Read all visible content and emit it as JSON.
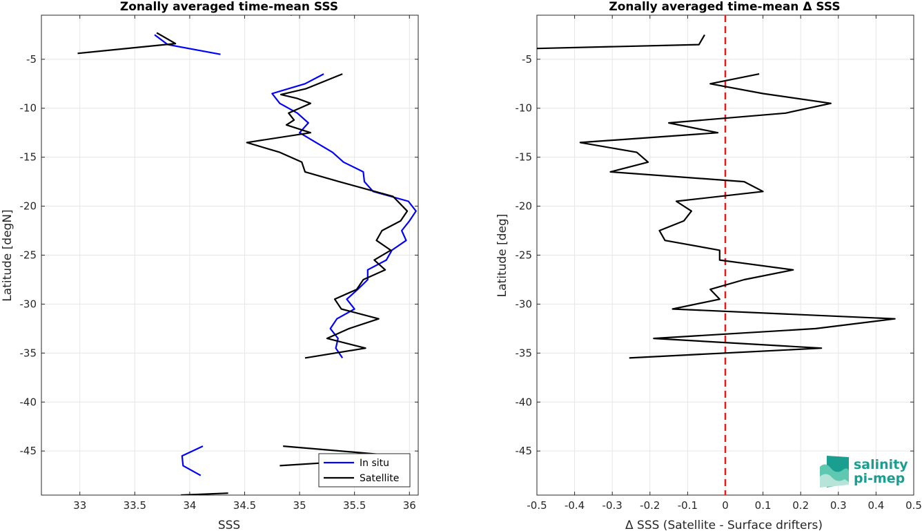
{
  "chart_data": [
    {
      "type": "line",
      "title": "Zonally averaged time-mean SSS",
      "xlabel": "SSS",
      "ylabel": "Latitude [degN]",
      "xlim": [
        32.65,
        36.08
      ],
      "ylim": [
        -49.5,
        -0.5
      ],
      "xticks": [
        33,
        33.5,
        34,
        34.5,
        35,
        35.5,
        36
      ],
      "xtick_labels": [
        "33",
        "33.5",
        "34",
        "34.5",
        "35",
        "35.5",
        "36"
      ],
      "yticks": [
        -5,
        -10,
        -15,
        -20,
        -25,
        -30,
        -35,
        -40,
        -45
      ],
      "ytick_labels": [
        "-5",
        "-10",
        "-15",
        "-20",
        "-25",
        "-30",
        "-35",
        "-40",
        "-45"
      ],
      "grid": true,
      "legend_position": "bottom-right",
      "series": [
        {
          "name": "In situ",
          "color": "#0000ff",
          "segments": [
            [
              [
                33.68,
                -2.5
              ],
              [
                33.8,
                -3.5
              ],
              [
                34.28,
                -4.5
              ]
            ],
            [
              [
                35.22,
                -6.5
              ],
              [
                35.05,
                -7.5
              ],
              [
                34.75,
                -8.5
              ],
              [
                34.82,
                -9.5
              ],
              [
                34.98,
                -10.5
              ],
              [
                35.08,
                -11.5
              ],
              [
                35.0,
                -12.5
              ],
              [
                35.15,
                -13.5
              ],
              [
                35.3,
                -14.5
              ],
              [
                35.4,
                -15.5
              ],
              [
                35.58,
                -16.5
              ],
              [
                35.59,
                -17.5
              ],
              [
                35.67,
                -18.5
              ],
              [
                35.99,
                -19.5
              ],
              [
                36.06,
                -20.5
              ],
              [
                36.0,
                -21.5
              ],
              [
                35.93,
                -22.5
              ],
              [
                35.97,
                -23.5
              ],
              [
                35.84,
                -24.5
              ],
              [
                35.79,
                -25.5
              ],
              [
                35.62,
                -26.5
              ],
              [
                35.62,
                -27.5
              ],
              [
                35.53,
                -28.5
              ],
              [
                35.43,
                -29.5
              ],
              [
                35.5,
                -30.5
              ],
              [
                35.34,
                -31.5
              ],
              [
                35.28,
                -32.5
              ],
              [
                35.35,
                -33.5
              ],
              [
                35.33,
                -34.5
              ],
              [
                35.39,
                -35.5
              ]
            ],
            [
              [
                34.12,
                -44.5
              ],
              [
                33.93,
                -45.5
              ],
              [
                33.94,
                -46.5
              ],
              [
                34.1,
                -47.5
              ]
            ]
          ]
        },
        {
          "name": "Satellite",
          "color": "#000000",
          "segments": [
            [
              [
                34.92,
                -0.5
              ],
              [
                34.98,
                -0.2
              ]
            ],
            [
              [
                33.7,
                -2.3
              ],
              [
                33.87,
                -3.4
              ],
              [
                32.98,
                -4.4
              ]
            ],
            [
              [
                35.39,
                -6.5
              ],
              [
                35.06,
                -8.0
              ],
              [
                34.83,
                -8.6
              ],
              [
                34.98,
                -9.0
              ],
              [
                35.1,
                -9.5
              ],
              [
                34.9,
                -10.5
              ],
              [
                34.95,
                -11.2
              ],
              [
                34.88,
                -11.7
              ],
              [
                35.1,
                -12.5
              ],
              [
                34.52,
                -13.5
              ],
              [
                34.82,
                -14.5
              ],
              [
                35.02,
                -15.5
              ],
              [
                35.05,
                -16.5
              ],
              [
                35.36,
                -17.5
              ],
              [
                35.85,
                -19.0
              ],
              [
                35.98,
                -20.5
              ],
              [
                35.92,
                -21.5
              ],
              [
                35.75,
                -22.5
              ],
              [
                35.7,
                -23.5
              ],
              [
                35.83,
                -24.5
              ],
              [
                35.68,
                -25.5
              ],
              [
                35.78,
                -26.5
              ],
              [
                35.58,
                -27.5
              ],
              [
                35.52,
                -28.5
              ],
              [
                35.32,
                -29.5
              ],
              [
                35.38,
                -30.5
              ],
              [
                35.72,
                -31.5
              ],
              [
                35.45,
                -32.5
              ],
              [
                35.25,
                -33.5
              ],
              [
                35.6,
                -34.5
              ],
              [
                35.05,
                -35.5
              ]
            ]
          ],
          "lower_segments": [
            [
              [
                34.85,
                -44.5
              ],
              [
                35.9,
                -45.5
              ]
            ],
            [
              [
                34.82,
                -46.5
              ],
              [
                35.8,
                -45.8
              ],
              [
                35.6,
                -47.0
              ]
            ],
            [
              [
                33.92,
                -49.5
              ],
              [
                34.35,
                -49.3
              ]
            ]
          ]
        }
      ]
    },
    {
      "type": "line",
      "title": "Zonally averaged time-mean Δ SSS",
      "xlabel": "Δ SSS (Satellite - Surface drifters)",
      "ylabel": "Latitude [deg]",
      "xlim": [
        -0.5,
        0.5
      ],
      "ylim": [
        -49.5,
        -0.5
      ],
      "xticks": [
        -0.5,
        -0.4,
        -0.3,
        -0.2,
        -0.1,
        0,
        0.1,
        0.2,
        0.3,
        0.4,
        0.5
      ],
      "xtick_labels": [
        "-0.5",
        "-0.4",
        "-0.3",
        "-0.2",
        "-0.1",
        "0",
        "0.1",
        "0.2",
        "0.3",
        "0.4",
        "0.5"
      ],
      "yticks": [
        -5,
        -10,
        -15,
        -20,
        -25,
        -30,
        -35,
        -40,
        -45
      ],
      "ytick_labels": [
        "-5",
        "-10",
        "-15",
        "-20",
        "-25",
        "-30",
        "-35",
        "-40",
        "-45"
      ],
      "grid": true,
      "reference_line": {
        "x": 0,
        "color": "#e41a1c",
        "style": "dashed"
      },
      "series": [
        {
          "color": "#000000",
          "segments": [
            [
              [
                -0.055,
                -2.5
              ],
              [
                -0.07,
                -3.5
              ],
              [
                -0.5,
                -3.9
              ]
            ],
            [
              [
                0.09,
                -6.5
              ],
              [
                -0.04,
                -7.5
              ],
              [
                0.1,
                -8.5
              ],
              [
                0.28,
                -9.5
              ],
              [
                0.16,
                -10.5
              ],
              [
                -0.15,
                -11.5
              ],
              [
                -0.02,
                -12.5
              ],
              [
                -0.385,
                -13.5
              ],
              [
                -0.235,
                -14.5
              ],
              [
                -0.205,
                -15.5
              ],
              [
                -0.305,
                -16.5
              ],
              [
                0.05,
                -17.5
              ],
              [
                0.1,
                -18.5
              ],
              [
                -0.13,
                -19.5
              ],
              [
                -0.09,
                -20.5
              ],
              [
                -0.11,
                -21.5
              ],
              [
                -0.175,
                -22.5
              ],
              [
                -0.16,
                -23.5
              ],
              [
                -0.015,
                -24.5
              ],
              [
                -0.015,
                -25.5
              ],
              [
                0.18,
                -26.5
              ],
              [
                0.05,
                -27.5
              ],
              [
                -0.04,
                -28.5
              ],
              [
                -0.015,
                -29.5
              ],
              [
                -0.14,
                -30.5
              ],
              [
                0.45,
                -31.5
              ],
              [
                0.24,
                -32.5
              ],
              [
                -0.19,
                -33.5
              ],
              [
                0.255,
                -34.5
              ],
              [
                -0.255,
                -35.5
              ]
            ]
          ]
        }
      ]
    }
  ],
  "logo": {
    "line1": "salinity",
    "line2": "pi-mep",
    "colors": [
      "#1a9e8f",
      "#5fc8b0",
      "#b7e4d8"
    ]
  }
}
